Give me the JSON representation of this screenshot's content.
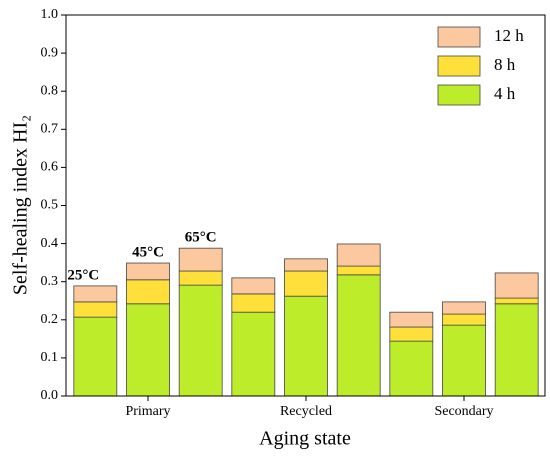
{
  "chart_data": {
    "type": "stacked_bar",
    "x_label": "Aging state",
    "y_label": "Self-healing index HI₂",
    "categories": [
      null,
      "Primary",
      null,
      null,
      "Recycled",
      null,
      null,
      "Secondary",
      null
    ],
    "series": [
      {
        "name": "4 h",
        "color": "#bded2a",
        "values": [
          0.207,
          0.242,
          0.291,
          0.22,
          0.262,
          0.318,
          0.144,
          0.186,
          0.242
        ]
      },
      {
        "name": "8 h",
        "color": "#ffe03a",
        "values": [
          0.04,
          0.063,
          0.037,
          0.048,
          0.066,
          0.023,
          0.037,
          0.029,
          0.015
        ]
      },
      {
        "name": "12 h",
        "color": "#fcc8a0",
        "values": [
          0.042,
          0.044,
          0.06,
          0.042,
          0.032,
          0.058,
          0.039,
          0.032,
          0.066
        ]
      }
    ],
    "annotations": [
      "25°C",
      "45°C",
      "65°C"
    ],
    "ylim": [
      0,
      1
    ],
    "yticks": [
      {
        "value": 0,
        "label": "0.0"
      },
      0.1,
      0.2,
      0.3,
      0.4,
      0.5,
      0.6,
      0.7,
      0.8,
      0.9,
      {
        "value": 1,
        "label": "1.0"
      }
    ],
    "legend": "upper right"
  }
}
